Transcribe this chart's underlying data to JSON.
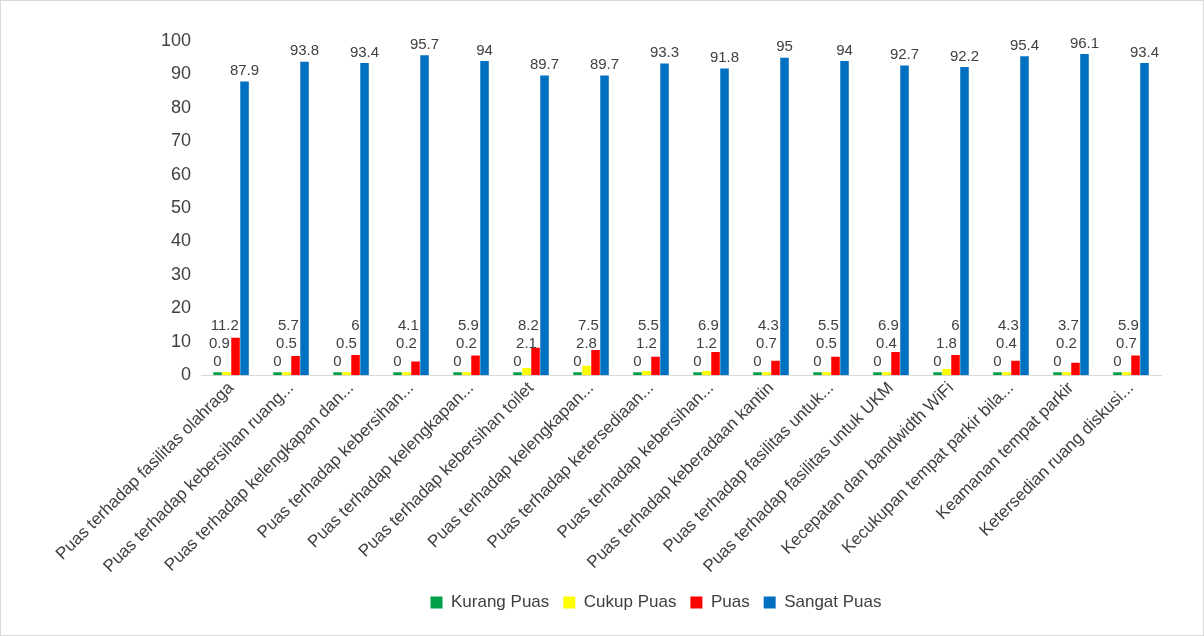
{
  "chart_data": {
    "type": "bar",
    "categories": [
      "Puas terhadap fasilitas olahraga",
      "Puas terhadap kebersihan ruang...",
      "Puas terhadap kelengkapan dan...",
      "Puas terhadap kebersihan...",
      "Puas terhadap kelengkapan...",
      "Puas terhadap kebersihan toilet",
      "Puas terhadap kelengkapan...",
      "Puas terhadap ketersediaan...",
      "Puas terhadap kebersihan...",
      "Puas terhadap keberadaan kantin",
      "Puas terhadap fasilitas untuk...",
      "Puas terhadap fasilitas untuk UKM",
      "Kecepatan dan bandwidth WiFi",
      "Kecukupan tempat parkir bila...",
      "Keamanan tempat parkir",
      "Ketersedian ruang diskusi..."
    ],
    "series": [
      {
        "name": "Kurang Puas",
        "color": "#00a04a",
        "values": [
          0,
          0,
          0,
          0,
          0,
          0,
          0,
          0,
          0,
          0,
          0,
          0,
          0,
          0,
          0,
          0
        ]
      },
      {
        "name": "Cukup Puas",
        "color": "#ffff00",
        "values": [
          0.9,
          0.5,
          0.5,
          0.2,
          0.2,
          2.1,
          2.8,
          1.2,
          1.2,
          0.7,
          0.5,
          0.4,
          1.8,
          0.4,
          0.2,
          0.7
        ]
      },
      {
        "name": "Puas",
        "color": "#ff0000",
        "values": [
          11.2,
          5.7,
          6,
          4.1,
          5.9,
          8.2,
          7.5,
          5.5,
          6.9,
          4.3,
          5.5,
          6.9,
          6,
          4.3,
          3.7,
          5.9
        ]
      },
      {
        "name": "Sangat Puas",
        "color": "#0070c0",
        "values": [
          87.9,
          93.8,
          93.4,
          95.7,
          94,
          89.7,
          89.7,
          93.3,
          91.8,
          95,
          94,
          92.7,
          92.2,
          95.4,
          96.1,
          93.4
        ]
      }
    ],
    "ylim": [
      0,
      100
    ],
    "yticks": [
      0,
      10,
      20,
      30,
      40,
      50,
      60,
      70,
      80,
      90,
      100
    ],
    "grid": false,
    "legend": "bottom",
    "data_labels": true
  }
}
